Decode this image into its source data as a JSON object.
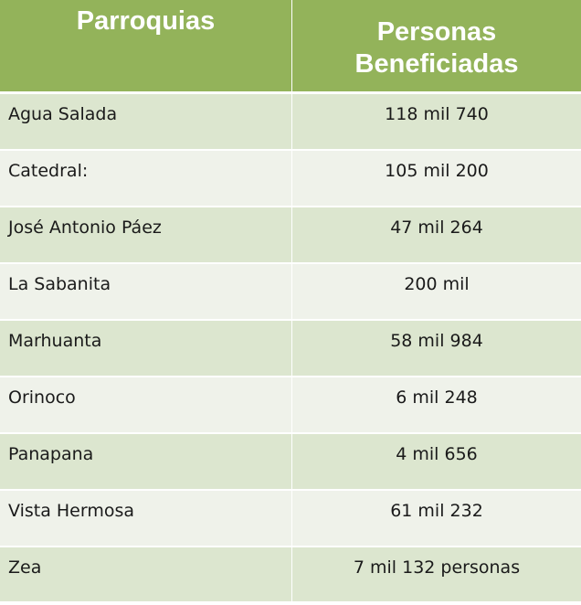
{
  "table": {
    "headers": {
      "col1": "Parroquias",
      "col2_line1": "Personas",
      "col2_line2": "Beneficiadas"
    },
    "rows": [
      {
        "parroquia": "Agua Salada",
        "personas": "118 mil 740"
      },
      {
        "parroquia": "Catedral:",
        "personas": "105 mil 200"
      },
      {
        "parroquia": "José Antonio Páez",
        "personas": "47 mil 264"
      },
      {
        "parroquia": "La Sabanita",
        "personas": "200 mil"
      },
      {
        "parroquia": "Marhuanta",
        "personas": "58 mil 984"
      },
      {
        "parroquia": "Orinoco",
        "personas": "6 mil 248"
      },
      {
        "parroquia": "Panapana",
        "personas": "4 mil 656"
      },
      {
        "parroquia": "Vista Hermosa",
        "personas": "61 mil 232"
      },
      {
        "parroquia": "Zea",
        "personas": "7 mil 132 personas"
      }
    ]
  },
  "colors": {
    "header_bg": "#93b35a",
    "row_odd_bg": "#dce6cf",
    "row_even_bg": "#eff2ea"
  }
}
